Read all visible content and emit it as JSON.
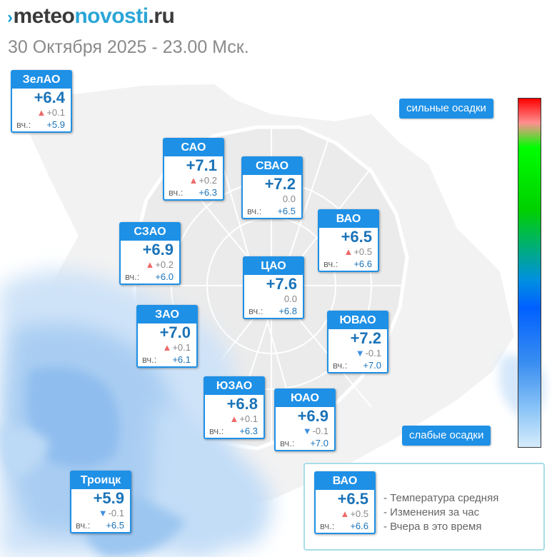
{
  "header": {
    "logo": {
      "mark": "›",
      "part1": "meteo",
      "part2": "novosti",
      "part3": ".ru"
    },
    "datetime": "30 Октября 2025 - 23.00 Мск."
  },
  "labels": {
    "yesterday_prefix": "вч.:"
  },
  "districts": [
    {
      "name": "ЗелАО",
      "temp": "+6.4",
      "trend": "up",
      "change": "+0.1",
      "yesterday": "+5.9"
    },
    {
      "name": "САО",
      "temp": "+7.1",
      "trend": "up",
      "change": "+0.2",
      "yesterday": "+6.3"
    },
    {
      "name": "СВАО",
      "temp": "+7.2",
      "trend": "none",
      "change": "0.0",
      "yesterday": "+6.5"
    },
    {
      "name": "ВАО",
      "temp": "+6.5",
      "trend": "up",
      "change": "+0.5",
      "yesterday": "+6.6"
    },
    {
      "name": "СЗАО",
      "temp": "+6.9",
      "trend": "up",
      "change": "+0.2",
      "yesterday": "+6.0"
    },
    {
      "name": "ЦАО",
      "temp": "+7.6",
      "trend": "none",
      "change": "0.0",
      "yesterday": "+6.8"
    },
    {
      "name": "ЗАО",
      "temp": "+7.0",
      "trend": "up",
      "change": "+0.1",
      "yesterday": "+6.1"
    },
    {
      "name": "ЮВАО",
      "temp": "+7.2",
      "trend": "down",
      "change": "-0.1",
      "yesterday": "+7.0"
    },
    {
      "name": "ЮЗАО",
      "temp": "+6.8",
      "trend": "up",
      "change": "+0.1",
      "yesterday": "+6.3"
    },
    {
      "name": "ЮАО",
      "temp": "+6.9",
      "trend": "down",
      "change": "-0.1",
      "yesterday": "+7.0"
    },
    {
      "name": "Троицк",
      "temp": "+5.9",
      "trend": "down",
      "change": "-0.1",
      "yesterday": "+6.5"
    }
  ],
  "precip_scale": {
    "top_label": "сильные осадки",
    "bottom_label": "слабые осадки",
    "colors": [
      "#ff0000",
      "#00ff00",
      "#0060ff",
      "#d6ebfc"
    ]
  },
  "legend": {
    "sample": {
      "name": "ВАО",
      "temp": "+6.5",
      "trend": "up",
      "change": "+0.5",
      "yesterday": "+6.6"
    },
    "lines": [
      "- Температура средняя",
      "- Изменения за час",
      "- Вчера в это время"
    ]
  },
  "colors": {
    "accent": "#1e90e6",
    "temp_text": "#1a73b8",
    "up_arrow": "#ee6a6a",
    "down_arrow": "#3f8ee0"
  }
}
